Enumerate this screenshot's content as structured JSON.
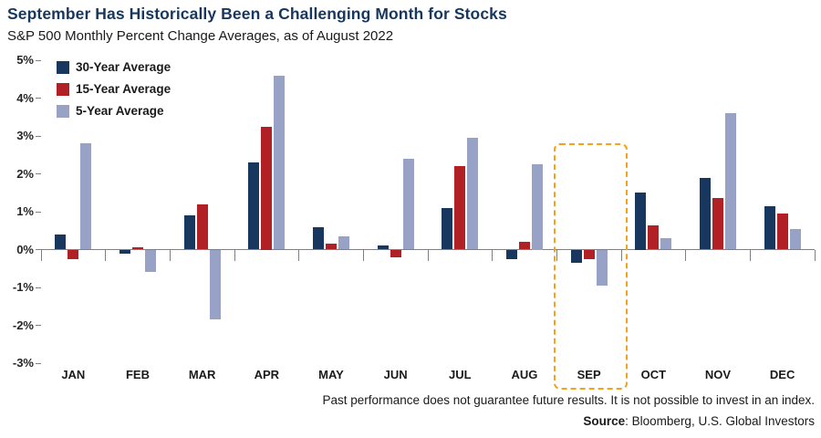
{
  "header": {
    "title": "September Has Historically Been a Challenging Month for Stocks",
    "subtitle": "S&P 500 Monthly Percent Change Averages, as of August 2022"
  },
  "footer": {
    "disclaimer": "Past performance does not guarantee future results. It is not possible to invest in an index.",
    "source_label": "Source",
    "source_rest": ": Bloomberg, U.S. Global Investors"
  },
  "colors": {
    "title": "#17375E",
    "axis": "#808080",
    "text": "#1a1a1a",
    "highlight": "#F5A21B"
  },
  "chart_data": {
    "type": "bar",
    "title": "September Has Historically Been a Challenging Month for Stocks",
    "subtitle": "S&P 500 Monthly Percent Change Averages, as of August 2022",
    "categories": [
      "JAN",
      "FEB",
      "MAR",
      "APR",
      "MAY",
      "JUN",
      "JUL",
      "AUG",
      "SEP",
      "OCT",
      "NOV",
      "DEC"
    ],
    "series": [
      {
        "name": "30-Year Average",
        "color": "#17375E",
        "values": [
          0.4,
          -0.1,
          0.9,
          2.3,
          0.6,
          0.1,
          1.1,
          -0.25,
          -0.35,
          1.5,
          1.9,
          1.15
        ]
      },
      {
        "name": "15-Year Average",
        "color": "#B02025",
        "values": [
          -0.25,
          0.05,
          1.2,
          3.25,
          0.15,
          -0.2,
          2.2,
          0.2,
          -0.25,
          0.65,
          1.35,
          0.95
        ]
      },
      {
        "name": "5-Year Average",
        "color": "#98A2C6",
        "values": [
          2.8,
          -0.6,
          -1.85,
          4.6,
          0.35,
          2.4,
          2.95,
          2.25,
          -0.95,
          0.3,
          3.6,
          0.55
        ]
      }
    ],
    "ylim": [
      -3,
      5
    ],
    "ytick_step": 1,
    "ytick_labels": [
      "5%",
      "4%",
      "3%",
      "2%",
      "1%",
      "0%",
      "-1%",
      "-2%",
      "-3%"
    ],
    "xlabel": "",
    "ylabel": "",
    "grid": false,
    "legend_position": "top-left",
    "highlight_category": "SEP",
    "highlight_top_value": 2.8
  }
}
